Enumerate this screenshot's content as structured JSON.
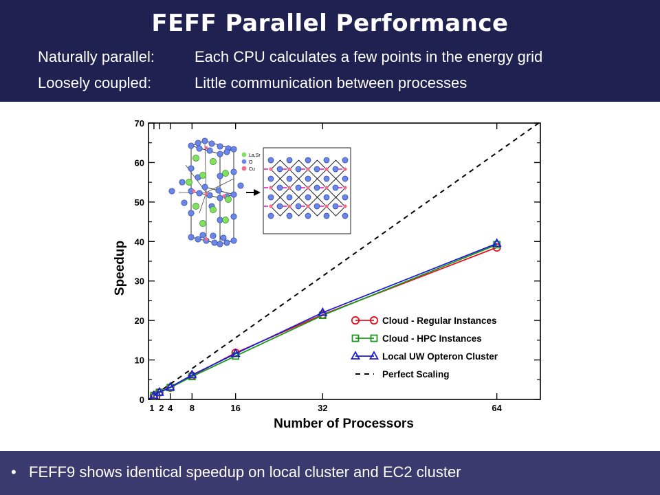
{
  "header": {
    "title": "FEFF Parallel Performance",
    "rows": [
      {
        "label": "Naturally parallel:",
        "text": "Each CPU calculates a few points in the energy grid"
      },
      {
        "label": "Loosely coupled:",
        "text": "Little communication between processes"
      }
    ]
  },
  "footer": {
    "bullet_icon": "bullet-dot",
    "text": "FEFF9 shows identical speedup on local cluster and EC2 cluster"
  },
  "inset": {
    "legend": [
      "La,Sr",
      "O",
      "Cu"
    ],
    "colors": {
      "la_sr": "#80e060",
      "o": "#6a86e8",
      "cu": "#ef6f8a",
      "arrow": "#e020c0"
    }
  },
  "chart_data": {
    "type": "line",
    "xlabel": "Number of Processors",
    "ylabel": "Speedup",
    "xlim": [
      0,
      72
    ],
    "ylim": [
      0,
      70
    ],
    "xticks": [
      1,
      2,
      4,
      8,
      16,
      32,
      64
    ],
    "xtick_labels": [
      "1",
      "2",
      "4",
      "8",
      "16",
      "32",
      "64"
    ],
    "yticks": [
      0,
      10,
      20,
      30,
      40,
      50,
      60,
      70
    ],
    "legend_position": "bottom-right",
    "series": [
      {
        "name": "Cloud - Regular Instances",
        "color": "#e8101e",
        "marker": "circle",
        "x": [
          1,
          2,
          4,
          8,
          16,
          32,
          64
        ],
        "y": [
          1,
          1.8,
          3.0,
          6.0,
          11.8,
          21.5,
          38.5
        ]
      },
      {
        "name": "Cloud - HPC Instances",
        "color": "#1a9a1a",
        "marker": "square",
        "x": [
          1,
          2,
          4,
          8,
          16,
          32,
          64
        ],
        "y": [
          1,
          1.8,
          3.0,
          5.8,
          11.0,
          21.3,
          39.2
        ]
      },
      {
        "name": "Local UW Opteron Cluster",
        "color": "#1c1cd6",
        "marker": "triangle",
        "x": [
          1,
          2,
          4,
          8,
          16,
          32,
          64
        ],
        "y": [
          1,
          1.8,
          3.1,
          6.2,
          11.6,
          22.0,
          39.5
        ]
      },
      {
        "name": "Perfect Scaling",
        "color": "#000000",
        "marker": "none",
        "dashed": true,
        "x": [
          0,
          72
        ],
        "y": [
          0,
          72
        ]
      }
    ]
  }
}
